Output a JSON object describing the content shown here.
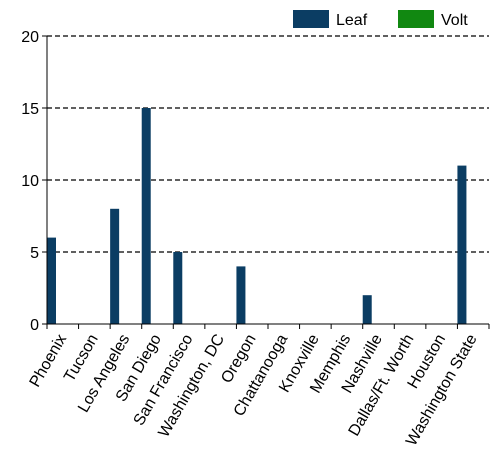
{
  "chart_data": {
    "type": "bar",
    "categories": [
      "Phoenix",
      "Tucson",
      "Los Angeles",
      "San Diego",
      "San Francisco",
      "Washington, DC",
      "Oregon",
      "Chattanooga",
      "Knoxville",
      "Memphis",
      "Nashville",
      "Dallas/Ft. Worth",
      "Houston",
      "Washington State"
    ],
    "series": [
      {
        "name": "Leaf",
        "color": "#0b3d63",
        "values": [
          6,
          0,
          8,
          15,
          5,
          0,
          4,
          0,
          0,
          0,
          2,
          0,
          0,
          11
        ]
      },
      {
        "name": "Volt",
        "color": "#118811",
        "values": [
          0,
          0,
          0,
          0,
          0,
          0,
          0,
          0,
          0,
          0,
          0,
          0,
          0,
          0
        ]
      }
    ],
    "yticks": [
      0,
      5,
      10,
      15,
      20
    ],
    "ylim": [
      0,
      20
    ],
    "grid": "horizontal-dashed",
    "legend_position": "top-right"
  }
}
